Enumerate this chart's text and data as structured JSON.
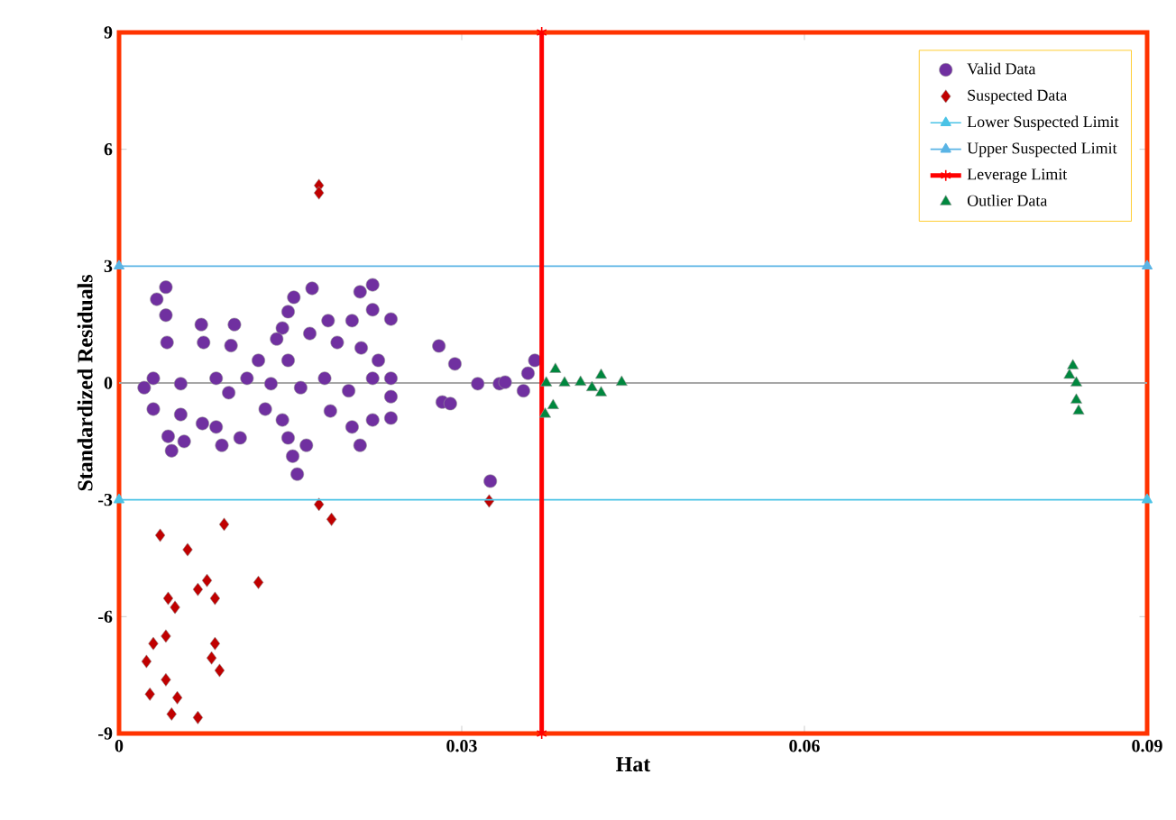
{
  "chart_data": {
    "type": "scatter",
    "xlabel": "Hat",
    "ylabel": "Standardized Residuals",
    "xlim": [
      0,
      0.09
    ],
    "ylim": [
      -9,
      9
    ],
    "xticks": [
      0,
      0.03,
      0.06,
      0.09
    ],
    "yticks": [
      -9,
      -6,
      -3,
      0,
      3,
      6,
      9
    ],
    "grid": false,
    "legend": "top right",
    "ref_lines": [
      {
        "axis": "y",
        "value": 0,
        "color": "#a6a6a6"
      }
    ],
    "series": [
      {
        "name": "Valid Data",
        "marker": "circle",
        "color": "#7030a0",
        "x": [
          0.0041,
          0.0033,
          0.0041,
          0.0042,
          0.0072,
          0.0101,
          0.0074,
          0.0098,
          0.003,
          0.0054,
          0.0085,
          0.0122,
          0.0148,
          0.0169,
          0.0153,
          0.0148,
          0.0143,
          0.0138,
          0.0167,
          0.0183,
          0.0204,
          0.0211,
          0.0222,
          0.0222,
          0.0238,
          0.0191,
          0.0212,
          0.0227,
          0.0238,
          0.0238,
          0.0238,
          0.0222,
          0.0211,
          0.0204,
          0.0185,
          0.0164,
          0.0148,
          0.0152,
          0.0156,
          0.0143,
          0.0128,
          0.0106,
          0.009,
          0.0085,
          0.0073,
          0.0057,
          0.0043,
          0.0046,
          0.0054,
          0.003,
          0.0022,
          0.0096,
          0.0112,
          0.0133,
          0.0159,
          0.018,
          0.0201,
          0.0222,
          0.028,
          0.0294,
          0.0283,
          0.029,
          0.0314,
          0.0333,
          0.0325,
          0.0358,
          0.0364,
          0.0354,
          0.0338
        ],
        "values": [
          2.46,
          2.15,
          1.74,
          1.04,
          1.5,
          1.5,
          1.04,
          0.96,
          0.12,
          -0.02,
          0.12,
          0.58,
          0.58,
          2.43,
          2.2,
          1.83,
          1.41,
          1.13,
          1.27,
          1.6,
          1.6,
          2.34,
          2.52,
          1.88,
          1.64,
          1.04,
          0.9,
          0.58,
          0.12,
          -0.35,
          -0.9,
          -0.95,
          -1.6,
          -1.13,
          -0.72,
          -1.6,
          -1.41,
          -1.88,
          -2.34,
          -0.95,
          -0.67,
          -1.41,
          -1.6,
          -1.13,
          -1.04,
          -1.5,
          -1.37,
          -1.74,
          -0.81,
          -0.67,
          -0.12,
          -0.25,
          0.12,
          -0.02,
          -0.12,
          0.12,
          -0.2,
          0.12,
          0.95,
          0.49,
          -0.49,
          -0.53,
          -0.02,
          -0.02,
          -2.52,
          0.25,
          0.58,
          -0.2,
          0.02
        ]
      },
      {
        "name": "Suspected Data",
        "marker": "diamond",
        "color": "#c00000",
        "x": [
          0.0175,
          0.0175,
          0.0175,
          0.0186,
          0.0324,
          0.0036,
          0.0092,
          0.006,
          0.0122,
          0.0077,
          0.0084,
          0.0043,
          0.0049,
          0.0069,
          0.0041,
          0.003,
          0.0024,
          0.0084,
          0.0081,
          0.0088,
          0.0041,
          0.0027,
          0.0051,
          0.0046,
          0.0069
        ],
        "values": [
          5.07,
          4.88,
          -3.12,
          -3.5,
          -3.03,
          -3.91,
          -3.63,
          -4.28,
          -5.12,
          -5.07,
          -5.53,
          -5.53,
          -5.76,
          -5.3,
          -6.5,
          -6.69,
          -7.15,
          -6.69,
          -7.06,
          -7.38,
          -7.62,
          -7.99,
          -8.08,
          -8.5,
          -8.59
        ]
      },
      {
        "name": "Lower Suspected Limit",
        "type": "line",
        "marker": "triangle",
        "color": "#4bc3e6",
        "x": [
          0,
          0.09
        ],
        "values": [
          -3,
          -3
        ]
      },
      {
        "name": "Upper Suspected Limit",
        "type": "line",
        "marker": "triangle",
        "color": "#5ab4e5",
        "x": [
          0,
          0.09
        ],
        "values": [
          3,
          3
        ]
      },
      {
        "name": "Leverage Limit",
        "type": "line",
        "marker": "cross",
        "color": "#ff0000",
        "x": [
          0.037,
          0.037
        ],
        "values": [
          -9,
          9
        ]
      },
      {
        "name": "Outlier Data",
        "marker": "triangle",
        "color": "#00873e",
        "x": [
          0.0382,
          0.0374,
          0.0373,
          0.038,
          0.039,
          0.0404,
          0.0414,
          0.0422,
          0.0422,
          0.044,
          0.0835,
          0.0838,
          0.0838,
          0.084,
          0.0832
        ],
        "values": [
          0.35,
          0,
          -0.8,
          -0.58,
          0,
          0.02,
          -0.12,
          0.2,
          -0.25,
          0.02,
          0.44,
          0,
          -0.44,
          -0.72,
          0.2
        ]
      }
    ]
  }
}
